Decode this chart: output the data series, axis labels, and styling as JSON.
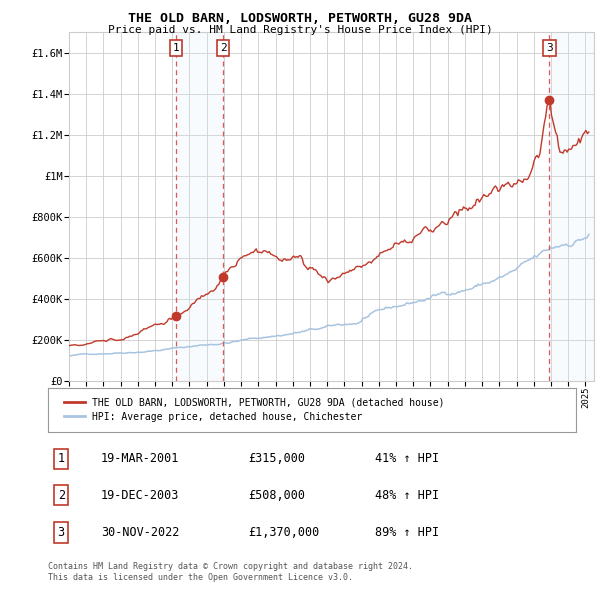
{
  "title": "THE OLD BARN, LODSWORTH, PETWORTH, GU28 9DA",
  "subtitle": "Price paid vs. HM Land Registry's House Price Index (HPI)",
  "xlim_start": 1995.0,
  "xlim_end": 2025.5,
  "ylim": [
    0,
    1700000
  ],
  "yticks": [
    0,
    200000,
    400000,
    600000,
    800000,
    1000000,
    1200000,
    1400000,
    1600000
  ],
  "ytick_labels": [
    "£0",
    "£200K",
    "£400K",
    "£600K",
    "£800K",
    "£1M",
    "£1.2M",
    "£1.4M",
    "£1.6M"
  ],
  "transactions": [
    {
      "num": 1,
      "date": "19-MAR-2001",
      "price": 315000,
      "pct": "41%",
      "x": 2001.21
    },
    {
      "num": 2,
      "date": "19-DEC-2003",
      "price": 508000,
      "pct": "48%",
      "x": 2003.96
    },
    {
      "num": 3,
      "date": "30-NOV-2022",
      "price": 1370000,
      "pct": "89%",
      "x": 2022.91
    }
  ],
  "hpi_line_color": "#a8c4e0",
  "price_line_color": "#c0392b",
  "dot_color": "#c0392b",
  "vline_color": "#e05555",
  "shade_color": "#dce9f5",
  "grid_color": "#cccccc",
  "bg_color": "#ffffff",
  "legend_label_price": "THE OLD BARN, LODSWORTH, PETWORTH, GU28 9DA (detached house)",
  "legend_label_hpi": "HPI: Average price, detached house, Chichester",
  "footer1": "Contains HM Land Registry data © Crown copyright and database right 2024.",
  "footer2": "This data is licensed under the Open Government Licence v3.0.",
  "table_rows": [
    [
      "1",
      "19-MAR-2001",
      "£315,000",
      "41% ↑ HPI"
    ],
    [
      "2",
      "19-DEC-2003",
      "£508,000",
      "48% ↑ HPI"
    ],
    [
      "3",
      "30-NOV-2022",
      "£1,370,000",
      "89% ↑ HPI"
    ]
  ]
}
